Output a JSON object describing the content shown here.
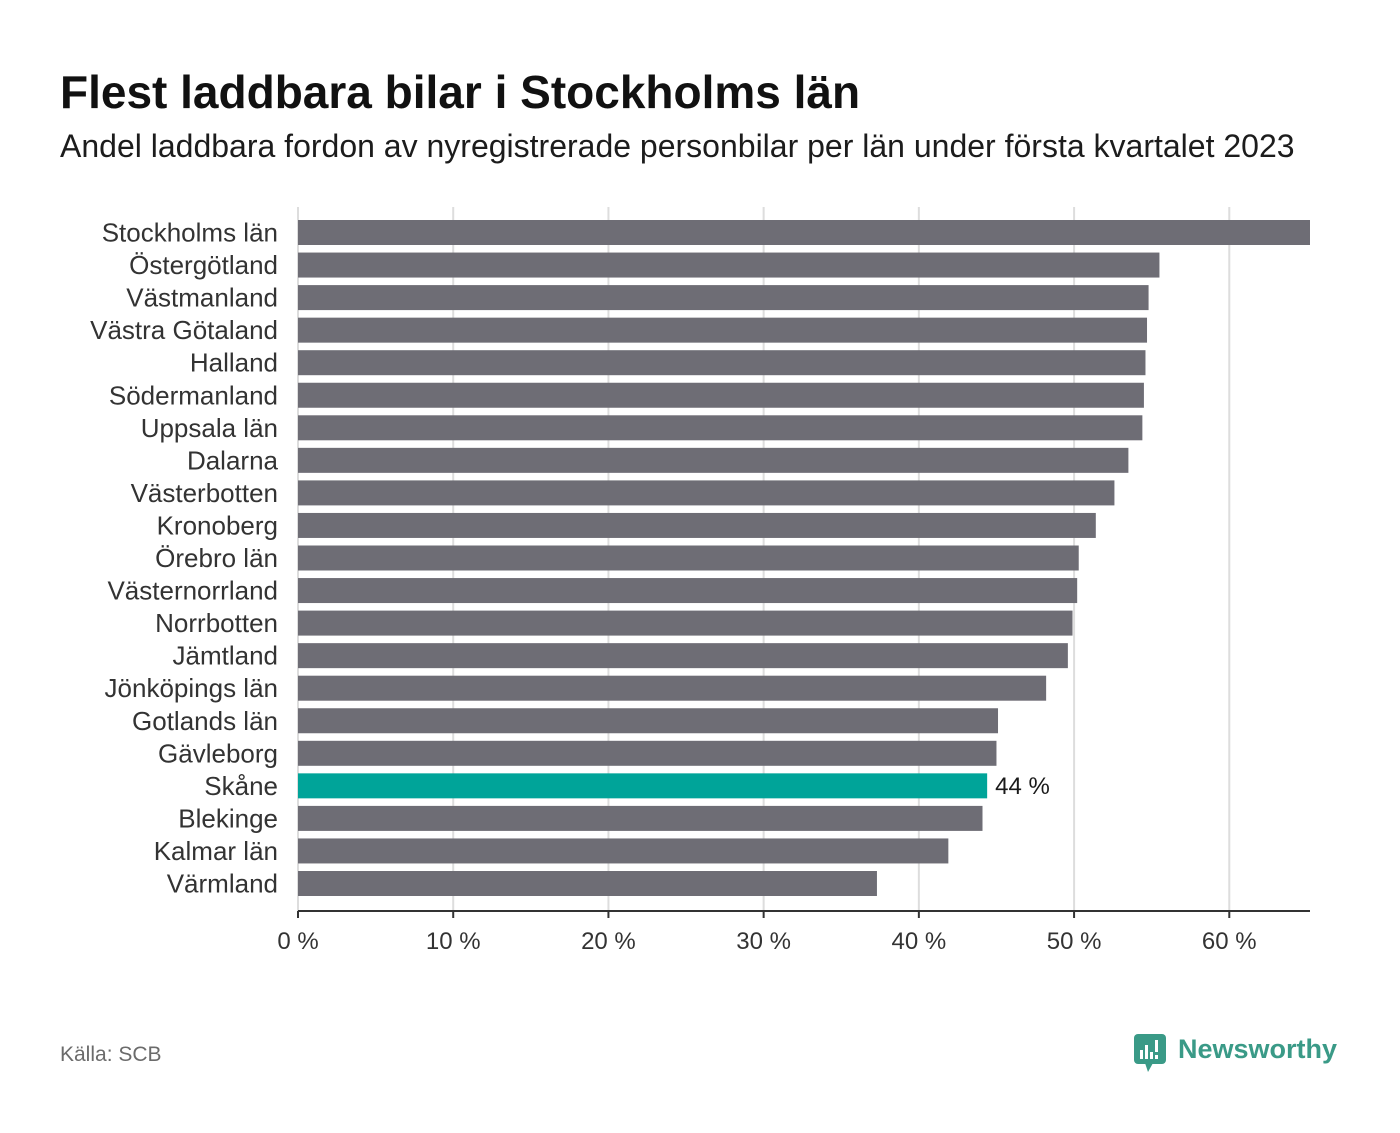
{
  "chart_data": {
    "type": "bar",
    "orientation": "horizontal",
    "title": "Flest laddbara bilar i Stockholms län",
    "subtitle": "Andel laddbara fordon av nyregistrerade personbilar per län under första kvartalet 2023",
    "xlabel": "",
    "ylabel": "",
    "categories": [
      "Stockholms län",
      "Östergötland",
      "Västmanland",
      "Västra Götaland",
      "Halland",
      "Södermanland",
      "Uppsala län",
      "Dalarna",
      "Västerbotten",
      "Kronoberg",
      "Örebro län",
      "Västernorrland",
      "Norrbotten",
      "Jämtland",
      "Jönköpings län",
      "Gotlands län",
      "Gävleborg",
      "Skåne",
      "Blekinge",
      "Kalmar län",
      "Värmland"
    ],
    "values": [
      65.2,
      55.5,
      54.8,
      54.7,
      54.6,
      54.5,
      54.4,
      53.5,
      52.6,
      51.4,
      50.3,
      50.2,
      49.9,
      49.6,
      48.2,
      45.1,
      45.0,
      44.4,
      44.1,
      41.9,
      37.3
    ],
    "xlim": [
      0,
      65.2
    ],
    "xticks": [
      0,
      10,
      20,
      30,
      40,
      50,
      60
    ],
    "xtick_labels": [
      "0 %",
      "10 %",
      "20 %",
      "30 %",
      "40 %",
      "50 %",
      "60 %"
    ],
    "grid": true,
    "legend": "none",
    "highlight": "Skåne",
    "annotations": [
      {
        "category": "Skåne",
        "text": "44 %"
      }
    ],
    "colors": {
      "bar": "#6e6d75",
      "highlight": "#00a499",
      "gridline": "#dddddd",
      "axis": "#333333",
      "text": "#333333"
    }
  },
  "footer": {
    "source": "Källa: SCB",
    "brand": "Newsworthy"
  },
  "colors": {
    "brand": "#3a9a87"
  }
}
